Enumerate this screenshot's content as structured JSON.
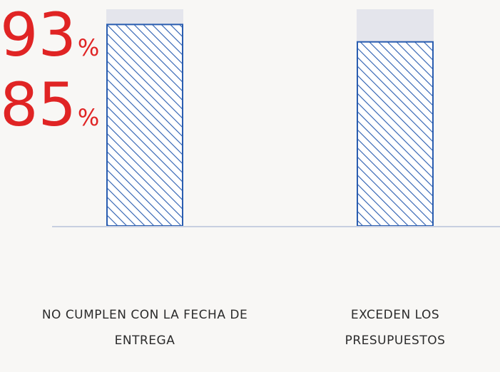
{
  "chart_data": {
    "type": "bar",
    "categories": [
      "NO CUMPLEN CON LA FECHA DE ENTREGA",
      "EXCEDEN LOS PRESUPUESTOS"
    ],
    "values": [
      93,
      85
    ],
    "unit": "%",
    "color": "#2a5db0",
    "track_color": "#e4e5ec",
    "label_color": "#e02424",
    "ylim": [
      0,
      100
    ]
  }
}
